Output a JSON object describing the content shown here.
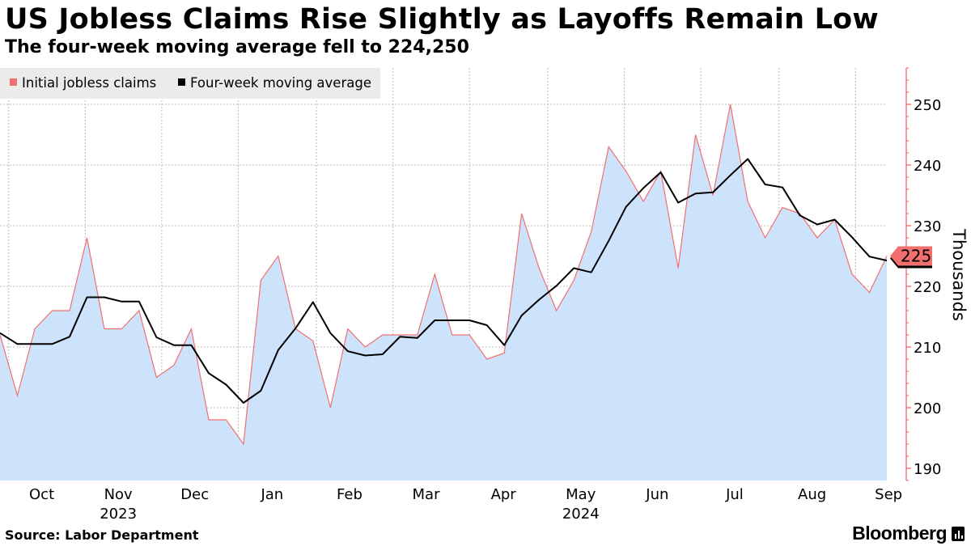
{
  "header": {
    "title": "US Jobless Claims Rise Slightly as Layoffs Remain Low",
    "subtitle": "The four-week moving average fell to 224,250"
  },
  "footer": {
    "source": "Source: Labor Department",
    "brand": "Bloomberg"
  },
  "colors": {
    "area_fill": "#cde3fb",
    "claims_line": "#f26f6f",
    "average_line": "#000000",
    "axis": "#f05a5a",
    "grid": "#bbbbbb",
    "legend_bg": "#ebebeb",
    "badge": "#f26f6f"
  },
  "chart_data": {
    "type": "area",
    "title": "US Jobless Claims Rise Slightly as Layoffs Remain Low",
    "subtitle": "The four-week moving average fell to 224,250",
    "ylabel": "Thousands",
    "ylim": [
      188,
      256
    ],
    "yticks": [
      190,
      200,
      210,
      220,
      230,
      240,
      250
    ],
    "grid": true,
    "legend_position": "top-left",
    "legend": [
      "Initial jobless claims",
      "Four-week moving average"
    ],
    "months": [
      "Oct",
      "Nov",
      "Dec",
      "Jan",
      "Feb",
      "Mar",
      "Apr",
      "May",
      "Jun",
      "Jul",
      "Aug",
      "Sep"
    ],
    "years": [
      {
        "label": "2023",
        "month": "Nov"
      },
      {
        "label": "2024",
        "month": "May"
      }
    ],
    "x_first_week_index": 0,
    "x_last_week_index": 51,
    "month_start_week_index": [
      0.5,
      4.9,
      9.3,
      13.7,
      18.2,
      22.6,
      27.0,
      31.5,
      35.9,
      40.3,
      44.8,
      49.2
    ],
    "series": [
      {
        "name": "Initial jobless claims",
        "values": [
          212,
          202,
          213,
          216,
          216,
          228,
          213,
          213,
          216,
          205,
          207,
          213,
          198,
          198,
          194,
          221,
          225,
          213,
          211,
          200,
          213,
          210,
          212,
          212,
          212,
          222,
          212,
          212,
          208,
          209,
          232,
          223,
          216,
          221,
          229,
          243,
          239,
          234,
          239,
          223,
          245,
          235,
          250,
          234,
          228,
          233,
          232,
          228,
          231,
          222,
          219,
          225
        ]
      },
      {
        "name": "Four-week moving average",
        "values": [
          212.3,
          210.5,
          210.5,
          210.5,
          211.7,
          218.2,
          218.2,
          217.5,
          217.5,
          211.6,
          210.3,
          210.3,
          205.7,
          203.8,
          200.8,
          202.8,
          209.5,
          213.1,
          217.4,
          212.3,
          209.3,
          208.6,
          208.8,
          211.7,
          211.5,
          214.4,
          214.4,
          214.4,
          213.6,
          210.3,
          215.2,
          217.8,
          220.1,
          223.0,
          222.3,
          227.5,
          233.1,
          236.2,
          238.8,
          233.8,
          235.3,
          235.5,
          238.3,
          241.0,
          236.8,
          236.3,
          231.7,
          230.2,
          231.0,
          228.1,
          224.9,
          224.25
        ]
      }
    ],
    "last_value_label": "225"
  }
}
